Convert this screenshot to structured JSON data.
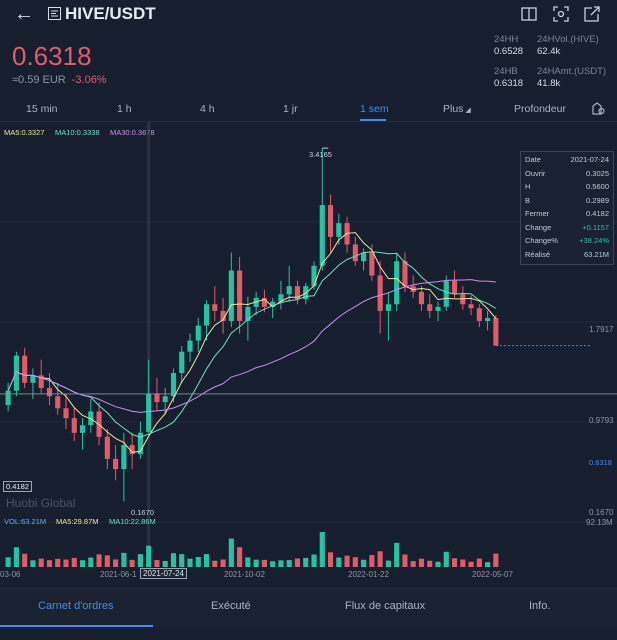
{
  "header": {
    "title": "HIVE/USDT"
  },
  "price": {
    "last": "0.6318",
    "fiat": "≈0.59 EUR",
    "change": "-3.06%"
  },
  "stats": {
    "h24_label": "24HH",
    "h24_value": "0.6528",
    "vol24_label": "24HVol.(HIVE)",
    "vol24_value": "62.4k",
    "b24_label": "24HB",
    "b24_value": "0.6318",
    "amt24_label": "24HAmt.(USDT)",
    "amt24_value": "41.8k"
  },
  "intervals": [
    "15 min",
    "1 h",
    "4 h",
    "1 jr",
    "1 sem",
    "Plus",
    "Profondeur"
  ],
  "active_interval": "1 sem",
  "ma_legend": {
    "ma5": "MA5:0.3327",
    "ma10": "MA10:0.3338",
    "ma30": "MA30:0.3678"
  },
  "vol_legend": {
    "vol": "VOL:63.21M",
    "ma5": "MA5:29.87M",
    "ma10": "MA10:22.86M"
  },
  "info_box": {
    "rows": [
      {
        "k": "Date",
        "v": "2021-07-24"
      },
      {
        "k": "Ouvrir",
        "v": "0.3025"
      },
      {
        "k": "H",
        "v": "0.5600"
      },
      {
        "k": "B",
        "v": "0.2989"
      },
      {
        "k": "Fermer",
        "v": "0.4182"
      },
      {
        "k": "Change",
        "v": "+0.1157"
      },
      {
        "k": "Change%",
        "v": "+38.24%"
      },
      {
        "k": "Réalisé",
        "v": "63.21M"
      }
    ]
  },
  "axis": {
    "p1": "1.7917",
    "p2": "0.9793",
    "last": "0.6318",
    "p3": "0.1670",
    "vol_max": "92.13M",
    "cursor_price": "0.4182"
  },
  "annotations": {
    "high": "3.4165",
    "low": "0.1670"
  },
  "dates": [
    "03-06",
    "2021-06-1",
    "2021-07-24",
    "2021-10-02",
    "2022-01-22",
    "2022-05-07"
  ],
  "watermark": "Huobi Global",
  "bottom_tabs": [
    "Carnet d'ordres",
    "Exécuté",
    "Flux de capitaux",
    "Info."
  ],
  "colors": {
    "up": "#23c4a2",
    "down": "#e25b6a",
    "accent": "#3d8ef0",
    "ma5": "#f2e3a0",
    "ma10": "#6fe0c0",
    "ma30": "#c98ef3",
    "bg": "#171f2e"
  },
  "chart_data": {
    "type": "candlestick",
    "ylim": [
      0.14,
      3.6
    ],
    "candles": [
      [
        0.38,
        0.46,
        0.36,
        0.43
      ],
      [
        0.43,
        0.6,
        0.41,
        0.58
      ],
      [
        0.58,
        0.62,
        0.44,
        0.46
      ],
      [
        0.46,
        0.52,
        0.4,
        0.49
      ],
      [
        0.49,
        0.56,
        0.42,
        0.44
      ],
      [
        0.44,
        0.5,
        0.38,
        0.41
      ],
      [
        0.41,
        0.46,
        0.35,
        0.37
      ],
      [
        0.37,
        0.42,
        0.31,
        0.34
      ],
      [
        0.34,
        0.37,
        0.28,
        0.3
      ],
      [
        0.3,
        0.34,
        0.26,
        0.32
      ],
      [
        0.32,
        0.4,
        0.3,
        0.36
      ],
      [
        0.36,
        0.39,
        0.27,
        0.29
      ],
      [
        0.29,
        0.31,
        0.22,
        0.24
      ],
      [
        0.24,
        0.27,
        0.2,
        0.22
      ],
      [
        0.22,
        0.3,
        0.167,
        0.27
      ],
      [
        0.27,
        0.3,
        0.22,
        0.25
      ],
      [
        0.25,
        0.33,
        0.24,
        0.3
      ],
      [
        0.3025,
        0.56,
        0.2989,
        0.4182
      ],
      [
        0.42,
        0.48,
        0.36,
        0.39
      ],
      [
        0.39,
        0.44,
        0.35,
        0.41
      ],
      [
        0.41,
        0.52,
        0.39,
        0.5
      ],
      [
        0.5,
        0.63,
        0.46,
        0.6
      ],
      [
        0.6,
        0.7,
        0.55,
        0.66
      ],
      [
        0.66,
        0.8,
        0.6,
        0.75
      ],
      [
        0.75,
        0.93,
        0.66,
        0.9
      ],
      [
        0.9,
        1.05,
        0.78,
        0.85
      ],
      [
        0.85,
        0.95,
        0.7,
        0.78
      ],
      [
        0.78,
        1.4,
        0.74,
        1.2
      ],
      [
        1.2,
        1.35,
        0.7,
        0.78
      ],
      [
        0.78,
        0.96,
        0.66,
        0.88
      ],
      [
        0.88,
        1.0,
        0.82,
        0.95
      ],
      [
        0.95,
        1.02,
        0.84,
        0.88
      ],
      [
        0.88,
        0.95,
        0.8,
        0.92
      ],
      [
        0.92,
        1.1,
        0.86,
        0.98
      ],
      [
        0.98,
        1.25,
        0.92,
        1.05
      ],
      [
        1.05,
        1.1,
        0.9,
        0.94
      ],
      [
        0.94,
        1.08,
        0.9,
        1.05
      ],
      [
        1.05,
        1.3,
        1.02,
        1.25
      ],
      [
        1.25,
        3.4165,
        1.2,
        2.1
      ],
      [
        2.1,
        2.3,
        1.4,
        1.6
      ],
      [
        1.6,
        1.95,
        1.5,
        1.8
      ],
      [
        1.8,
        1.9,
        1.4,
        1.5
      ],
      [
        1.5,
        1.6,
        1.25,
        1.3
      ],
      [
        1.3,
        1.45,
        1.2,
        1.4
      ],
      [
        1.4,
        1.5,
        1.1,
        1.15
      ],
      [
        1.15,
        1.3,
        0.7,
        0.85
      ],
      [
        0.85,
        1.0,
        0.66,
        0.9
      ],
      [
        0.9,
        1.4,
        0.85,
        1.3
      ],
      [
        1.3,
        1.4,
        1.0,
        1.05
      ],
      [
        1.05,
        1.15,
        0.95,
        1.0
      ],
      [
        1.0,
        1.05,
        0.85,
        0.9
      ],
      [
        0.9,
        0.98,
        0.8,
        0.85
      ],
      [
        0.85,
        0.92,
        0.78,
        0.88
      ],
      [
        0.88,
        1.15,
        0.85,
        1.1
      ],
      [
        1.1,
        1.2,
        0.95,
        0.98
      ],
      [
        0.98,
        1.05,
        0.86,
        0.9
      ],
      [
        0.9,
        0.97,
        0.82,
        0.87
      ],
      [
        0.87,
        0.9,
        0.74,
        0.78
      ],
      [
        0.78,
        0.85,
        0.72,
        0.8
      ],
      [
        0.8,
        0.82,
        0.65,
        0.6318
      ]
    ]
  }
}
